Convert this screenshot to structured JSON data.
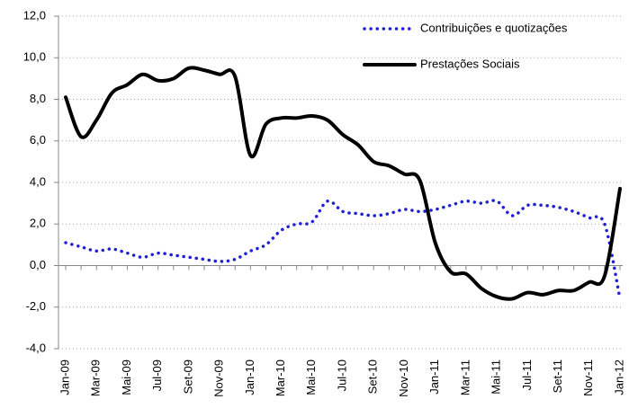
{
  "chart_data": {
    "type": "line",
    "categories": [
      "Jan-09",
      null,
      "Mar-09",
      null,
      "Mai-09",
      null,
      "Jul-09",
      null,
      "Set-09",
      null,
      "Nov-09",
      null,
      "Jan-10",
      null,
      "Mar-10",
      null,
      "Mai-10",
      null,
      "Jul-10",
      null,
      "Set-10",
      null,
      "Nov-10",
      null,
      "Jan-11",
      null,
      "Mar-11",
      null,
      "Mai-11",
      null,
      "Jul-11",
      null,
      "Set-11",
      null,
      "Nov-11",
      null,
      "Jan-12"
    ],
    "series": [
      {
        "name": "Contribuições e quotizações",
        "color": "#1f1fd6",
        "style": "dotted",
        "values": [
          1.1,
          0.9,
          0.7,
          0.8,
          0.6,
          0.4,
          0.6,
          0.5,
          0.4,
          0.3,
          0.2,
          0.3,
          0.7,
          1.0,
          1.7,
          2.0,
          2.1,
          3.1,
          2.6,
          2.5,
          2.4,
          2.5,
          2.7,
          2.6,
          2.7,
          2.9,
          3.1,
          3.0,
          3.1,
          2.4,
          2.9,
          2.9,
          2.8,
          2.6,
          2.3,
          2.0,
          -1.6
        ]
      },
      {
        "name": "Prestações Sociais",
        "color": "#000000",
        "style": "solid",
        "values": [
          8.1,
          6.2,
          7.0,
          8.3,
          8.7,
          9.2,
          8.9,
          9.0,
          9.5,
          9.4,
          9.2,
          9.1,
          5.3,
          6.8,
          7.1,
          7.1,
          7.2,
          7.0,
          6.3,
          5.8,
          5.0,
          4.8,
          4.4,
          4.1,
          1.1,
          -0.3,
          -0.4,
          -1.1,
          -1.5,
          -1.6,
          -1.3,
          -1.4,
          -1.2,
          -1.2,
          -0.8,
          -0.5,
          3.7
        ]
      }
    ],
    "ylim": [
      -4,
      12
    ],
    "yticks": [
      {
        "value": -4,
        "label": "-4,0"
      },
      {
        "value": -2,
        "label": "-2,0"
      },
      {
        "value": 0,
        "label": "0,0"
      },
      {
        "value": 2,
        "label": "2,0"
      },
      {
        "value": 4,
        "label": "4,0"
      },
      {
        "value": 6,
        "label": "6,0"
      },
      {
        "value": 8,
        "label": "8,0"
      },
      {
        "value": 10,
        "label": "10,0"
      },
      {
        "value": 12,
        "label": "12,0"
      }
    ],
    "grid": true,
    "legend": "top-right"
  }
}
